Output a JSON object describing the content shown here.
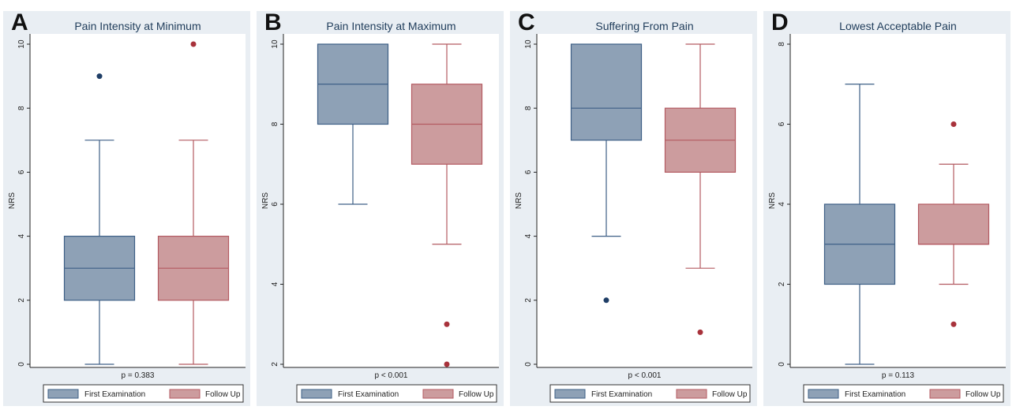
{
  "colors": {
    "first_fill": "#8ea1b6",
    "first_stroke": "#3d5f86",
    "first_dot": "#1f3e66",
    "follow_fill": "#cc9c9e",
    "follow_stroke": "#b35a61",
    "follow_dot": "#a8323b",
    "panel_bg": "#e9eef3",
    "plot_bg": "#ffffff",
    "title_color": "#1f3c5a"
  },
  "legend": [
    "First Examination",
    "Follow Up"
  ],
  "chart_data": [
    {
      "type": "box",
      "letter": "A",
      "title": "Pain Intensity at Minimum",
      "ylabel": "NRS",
      "ylim": [
        0,
        10
      ],
      "yticks": [
        0,
        2,
        4,
        6,
        8,
        10
      ],
      "footer": "p = 0.383",
      "categories": [
        "First Examination",
        "Follow Up"
      ],
      "boxes": [
        {
          "group": "First Examination",
          "whisker_low": 0,
          "q1": 2,
          "median": 3,
          "q3": 4,
          "whisker_high": 7,
          "outliers": [
            9
          ]
        },
        {
          "group": "Follow Up",
          "whisker_low": 0,
          "q1": 2,
          "median": 3,
          "q3": 4,
          "whisker_high": 7,
          "outliers": [
            10
          ]
        }
      ]
    },
    {
      "type": "box",
      "letter": "B",
      "title": "Pain Intensity at Maximum",
      "ylabel": "NRS",
      "ylim": [
        2,
        10
      ],
      "yticks": [
        2,
        4,
        6,
        8,
        10
      ],
      "footer": "p < 0.001",
      "categories": [
        "First Examination",
        "Follow Up"
      ],
      "boxes": [
        {
          "group": "First Examination",
          "whisker_low": 6,
          "q1": 8,
          "median": 9,
          "q3": 10,
          "whisker_high": 10,
          "outliers": []
        },
        {
          "group": "Follow Up",
          "whisker_low": 5,
          "q1": 7,
          "median": 8,
          "q3": 9,
          "whisker_high": 10,
          "outliers": [
            3,
            2
          ]
        }
      ]
    },
    {
      "type": "box",
      "letter": "C",
      "title": "Suffering From Pain",
      "ylabel": "NRS",
      "ylim": [
        0,
        10
      ],
      "yticks": [
        0,
        2,
        4,
        6,
        8,
        10
      ],
      "footer": "p < 0.001",
      "categories": [
        "First Examination",
        "Follow Up"
      ],
      "boxes": [
        {
          "group": "First Examination",
          "whisker_low": 4,
          "q1": 7,
          "median": 8,
          "q3": 10,
          "whisker_high": 10,
          "outliers": [
            2
          ]
        },
        {
          "group": "Follow Up",
          "whisker_low": 3,
          "q1": 6,
          "median": 7,
          "q3": 8,
          "whisker_high": 10,
          "outliers": [
            1
          ]
        }
      ]
    },
    {
      "type": "box",
      "letter": "D",
      "title": "Lowest Acceptable Pain",
      "ylabel": "NRS",
      "ylim": [
        0,
        8
      ],
      "yticks": [
        0,
        2,
        4,
        6,
        8
      ],
      "footer": "p = 0.113",
      "categories": [
        "First Examination",
        "Follow Up"
      ],
      "boxes": [
        {
          "group": "First Examination",
          "whisker_low": 0,
          "q1": 2,
          "median": 3,
          "q3": 4,
          "whisker_high": 7,
          "outliers": []
        },
        {
          "group": "Follow Up",
          "whisker_low": 2,
          "q1": 3,
          "median": 3,
          "q3": 4,
          "whisker_high": 5,
          "outliers": [
            6,
            1
          ]
        }
      ]
    }
  ]
}
